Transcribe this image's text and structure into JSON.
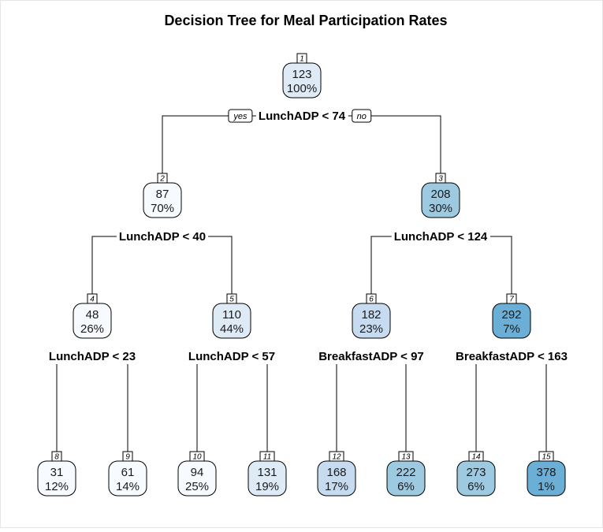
{
  "title": "Decision Tree for Meal Participation Rates",
  "branch_labels": {
    "yes": "yes",
    "no": "no"
  },
  "colors": {
    "fill_scale": [
      "#f7fbff",
      "#deebf7",
      "#c6dbef",
      "#9ecae1",
      "#6baed6"
    ],
    "edge": "#000000"
  },
  "nodes": [
    {
      "id": "1",
      "value": "123",
      "percent": "100%",
      "split": "LunchADP < 74",
      "shade": 1
    },
    {
      "id": "2",
      "value": "87",
      "percent": "70%",
      "split": "LunchADP < 40",
      "shade": 0
    },
    {
      "id": "3",
      "value": "208",
      "percent": "30%",
      "split": "LunchADP < 124",
      "shade": 3
    },
    {
      "id": "4",
      "value": "48",
      "percent": "26%",
      "split": "LunchADP < 23",
      "shade": 0
    },
    {
      "id": "5",
      "value": "110",
      "percent": "44%",
      "split": "LunchADP < 57",
      "shade": 1
    },
    {
      "id": "6",
      "value": "182",
      "percent": "23%",
      "split": "BreakfastADP < 97",
      "shade": 2
    },
    {
      "id": "7",
      "value": "292",
      "percent": "7%",
      "split": "BreakfastADP < 163",
      "shade": 4
    },
    {
      "id": "8",
      "value": "31",
      "percent": "12%",
      "split": "",
      "shade": 0
    },
    {
      "id": "9",
      "value": "61",
      "percent": "14%",
      "split": "",
      "shade": 0
    },
    {
      "id": "10",
      "value": "94",
      "percent": "25%",
      "split": "",
      "shade": 0
    },
    {
      "id": "11",
      "value": "131",
      "percent": "19%",
      "split": "",
      "shade": 1
    },
    {
      "id": "12",
      "value": "168",
      "percent": "17%",
      "split": "",
      "shade": 2
    },
    {
      "id": "13",
      "value": "222",
      "percent": "6%",
      "split": "",
      "shade": 3
    },
    {
      "id": "14",
      "value": "273",
      "percent": "6%",
      "split": "",
      "shade": 3
    },
    {
      "id": "15",
      "value": "378",
      "percent": "1%",
      "split": "",
      "shade": 4
    }
  ]
}
